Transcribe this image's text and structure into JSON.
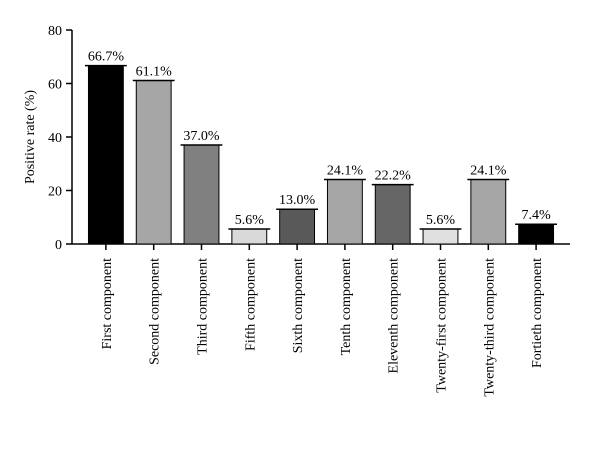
{
  "chart_data": {
    "type": "bar",
    "y_label": "Positive rate (%)",
    "categories": [
      "First component",
      "Second component",
      "Third component",
      "Fifth component",
      "Sixth component",
      "Tenth component",
      "Eleventh component",
      "Twenty-first component",
      "Twenty-third component",
      "Fortieth component"
    ],
    "values": [
      66.7,
      61.1,
      37.0,
      5.6,
      13.0,
      24.1,
      22.2,
      5.6,
      24.1,
      7.4
    ],
    "value_labels": [
      "66.7%",
      "61.1%",
      "37.0%",
      "5.6%",
      "13.0%",
      "24.1%",
      "22.2%",
      "5.6%",
      "24.1%",
      "7.4%"
    ],
    "colors": [
      "#000000",
      "#a6a6a6",
      "#808080",
      "#d9d9d9",
      "#595959",
      "#a6a6a6",
      "#666666",
      "#e0e0e0",
      "#a6a6a6",
      "#000000"
    ],
    "ylim": [
      0,
      80
    ],
    "yticks": [
      0,
      20,
      40,
      60,
      80
    ],
    "grid": false
  }
}
